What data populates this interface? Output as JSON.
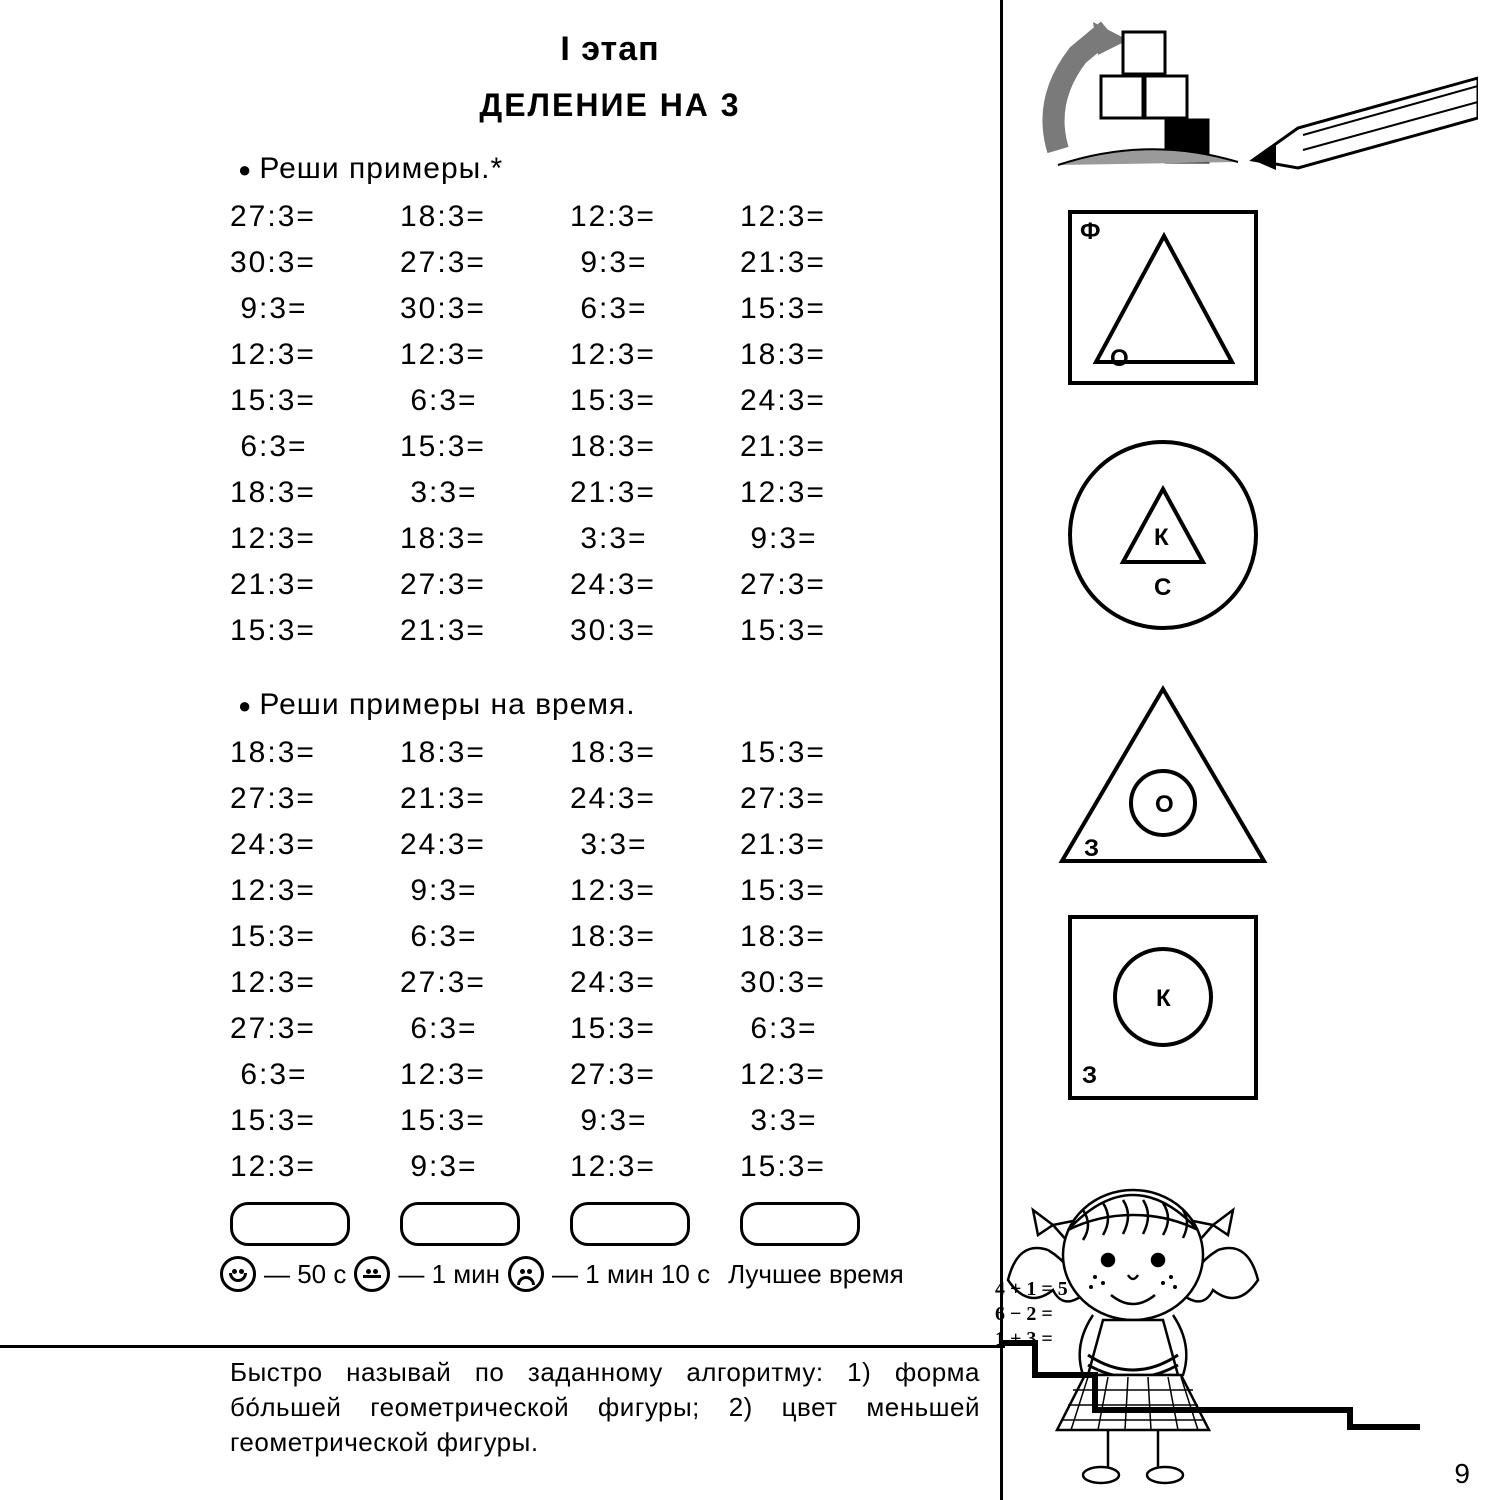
{
  "stage": "I  этап",
  "title": "ДЕЛЕНИЕ  НА  3",
  "task1_heading": "Реши  примеры.*",
  "task2_heading": "Реши  примеры  на  время.",
  "problems1": [
    [
      "27:3=",
      "18:3=",
      "12:3=",
      "12:3="
    ],
    [
      "30:3=",
      "27:3=",
      " 9:3=",
      "21:3="
    ],
    [
      " 9:3=",
      "30:3=",
      " 6:3=",
      "15:3="
    ],
    [
      "12:3=",
      "12:3=",
      "12:3=",
      "18:3="
    ],
    [
      "15:3=",
      " 6:3=",
      "15:3=",
      "24:3="
    ],
    [
      " 6:3=",
      "15:3=",
      "18:3=",
      "21:3="
    ],
    [
      "18:3=",
      " 3:3=",
      "21:3=",
      "12:3="
    ],
    [
      "12:3=",
      "18:3=",
      " 3:3=",
      " 9:3="
    ],
    [
      "21:3=",
      "27:3=",
      "24:3=",
      "27:3="
    ],
    [
      "15:3=",
      "21:3=",
      "30:3=",
      "15:3="
    ]
  ],
  "problems2": [
    [
      "18:3=",
      "18:3=",
      "18:3=",
      "15:3="
    ],
    [
      "27:3=",
      "21:3=",
      "24:3=",
      "27:3="
    ],
    [
      "24:3=",
      "24:3=",
      " 3:3=",
      "21:3="
    ],
    [
      "12:3=",
      " 9:3=",
      "12:3=",
      "15:3="
    ],
    [
      "15:3=",
      " 6:3=",
      "18:3=",
      "18:3="
    ],
    [
      "12:3=",
      "27:3=",
      "24:3=",
      "30:3="
    ],
    [
      "27:3=",
      " 6:3=",
      "15:3=",
      " 6:3="
    ],
    [
      " 6:3=",
      "12:3=",
      "27:3=",
      "12:3="
    ],
    [
      "15:3=",
      "15:3=",
      " 9:3=",
      " 3:3="
    ],
    [
      "12:3=",
      " 9:3=",
      "12:3=",
      "15:3="
    ]
  ],
  "legend": {
    "t1": "— 50 с",
    "t2": "— 1 мин",
    "t3": "— 1 мин 10 с",
    "best": "Лучшее время"
  },
  "footer": "Быстро называй по заданному алгоритму: 1) форма бо́льшей геометрической фигуры; 2) цвет меньшей геометрической   фигуры.",
  "page_number": "9",
  "shapes": {
    "box1": {
      "outer": "Ф",
      "inner": "О"
    },
    "circle": {
      "outer": "С",
      "inner": "К"
    },
    "triangle": {
      "outer": "З",
      "inner": "О"
    },
    "box2": {
      "outer": "З",
      "inner": "К"
    }
  }
}
